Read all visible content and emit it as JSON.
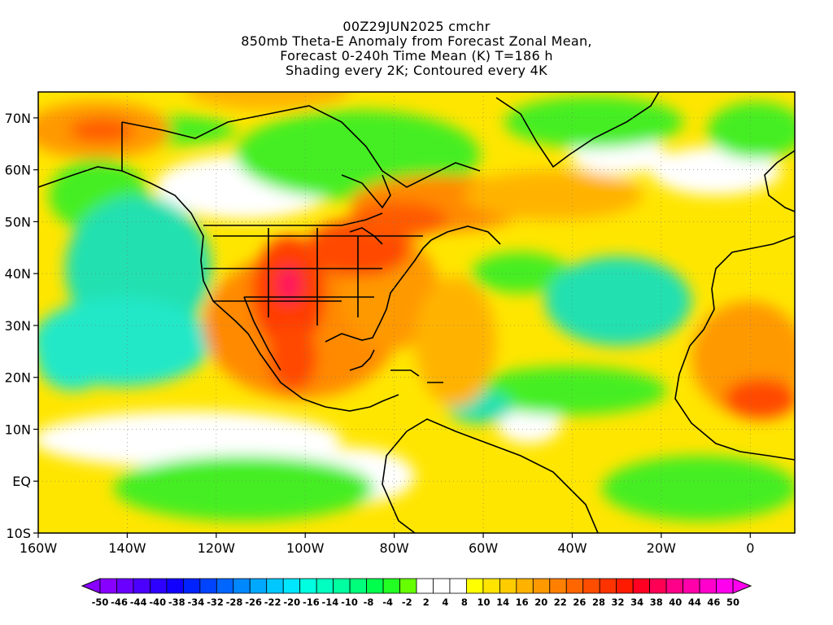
{
  "title": {
    "line1": "00Z29JUN2025 cmchr",
    "line2": "850mb Theta-E Anomaly from Forecast Zonal Mean,",
    "line3": "Forecast 0-240h Time Mean (K) T=186 h",
    "line4": "Shading every 2K; Contoured every 4K"
  },
  "map": {
    "lon_range": [
      -160,
      10
    ],
    "lat_range": [
      -10,
      75
    ],
    "lon_ticks": [
      {
        "value": -160,
        "label": "160W"
      },
      {
        "value": -140,
        "label": "140W"
      },
      {
        "value": -120,
        "label": "120W"
      },
      {
        "value": -100,
        "label": "100W"
      },
      {
        "value": -80,
        "label": "80W"
      },
      {
        "value": -60,
        "label": "60W"
      },
      {
        "value": -40,
        "label": "40W"
      },
      {
        "value": -20,
        "label": "20W"
      },
      {
        "value": 0,
        "label": "0"
      }
    ],
    "lat_ticks": [
      {
        "value": 70,
        "label": "70N"
      },
      {
        "value": 60,
        "label": "60N"
      },
      {
        "value": 50,
        "label": "50N"
      },
      {
        "value": 40,
        "label": "40N"
      },
      {
        "value": 30,
        "label": "30N"
      },
      {
        "value": 20,
        "label": "20N"
      },
      {
        "value": 10,
        "label": "10N"
      },
      {
        "value": 0,
        "label": "EQ"
      },
      {
        "value": -10,
        "label": "10S"
      }
    ]
  },
  "colorbar": {
    "labels": [
      "-50",
      "-46",
      "-44",
      "-40",
      "-38",
      "-34",
      "-32",
      "-28",
      "-26",
      "-22",
      "-20",
      "-16",
      "-14",
      "-10",
      "-8",
      "-4",
      "-2",
      "2",
      "4",
      "8",
      "10",
      "14",
      "16",
      "20",
      "22",
      "26",
      "28",
      "32",
      "34",
      "38",
      "40",
      "44",
      "46",
      "50"
    ],
    "colors": [
      "#8800ff",
      "#6a00ff",
      "#4b00ff",
      "#2d00ff",
      "#1200ff",
      "#0022ff",
      "#0044ff",
      "#0066ff",
      "#0088ff",
      "#00a9ff",
      "#00c8ff",
      "#00e6ff",
      "#00ffe0",
      "#00ffc0",
      "#00ffa0",
      "#00ff7a",
      "#00ff4d",
      "#22ff22",
      "#66ff00",
      "#ffffff",
      "#ffffff",
      "#ffffff",
      "#ffff00",
      "#ffe400",
      "#ffcc00",
      "#ffb300",
      "#ff9900",
      "#ff8000",
      "#ff6600",
      "#ff4d00",
      "#ff3300",
      "#ff1a00",
      "#ff0022",
      "#ff0055",
      "#ff0088",
      "#ff00aa",
      "#ff00cc",
      "#ff00ee"
    ]
  }
}
